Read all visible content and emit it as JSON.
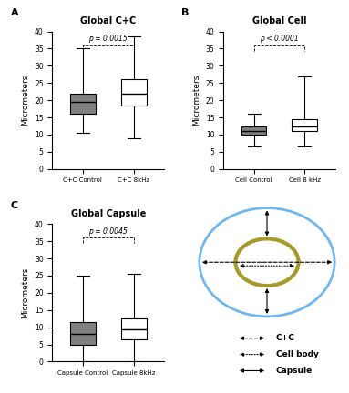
{
  "chart_data": [
    {
      "type": "box",
      "panel": "A",
      "title": "Global C+C",
      "y_label": "Micrometers",
      "categories": [
        "C+C Control",
        "C+C 8kHz"
      ],
      "boxes": [
        {
          "min": 10.5,
          "q1": 16,
          "median": 19.5,
          "q3": 22,
          "max": 35
        },
        {
          "min": 9,
          "q1": 18.5,
          "median": 22,
          "q3": 26,
          "max": 38.5
        }
      ],
      "colors": [
        "#808080",
        "#ffffff"
      ],
      "annotation": "p = 0.0015",
      "ylim": [
        0,
        40
      ],
      "yticks": [
        0,
        5,
        10,
        15,
        20,
        25,
        30,
        35,
        40
      ]
    },
    {
      "type": "box",
      "panel": "B",
      "title": "Global Cell",
      "y_label": "Micrometers",
      "categories": [
        "Cell Control",
        "Cell 8 kHz"
      ],
      "boxes": [
        {
          "min": 6.5,
          "q1": 10,
          "median": 11,
          "q3": 12.5,
          "max": 16
        },
        {
          "min": 6.5,
          "q1": 11,
          "median": 12.5,
          "q3": 14.5,
          "max": 27
        }
      ],
      "colors": [
        "#808080",
        "#ffffff"
      ],
      "annotation": "p < 0.0001",
      "ylim": [
        0,
        40
      ],
      "yticks": [
        0,
        5,
        10,
        15,
        20,
        25,
        30,
        35,
        40
      ]
    },
    {
      "type": "box",
      "panel": "C",
      "title": "Global Capsule",
      "y_label": "Micrometers",
      "categories": [
        "Capsule Control",
        "Capsule 8kHz"
      ],
      "boxes": [
        {
          "min": 0,
          "q1": 5,
          "median": 8,
          "q3": 11.5,
          "max": 25
        },
        {
          "min": 0.2,
          "q1": 6.5,
          "median": 9.5,
          "q3": 12.5,
          "max": 25.5
        }
      ],
      "colors": [
        "#808080",
        "#ffffff"
      ],
      "annotation": "p = 0.0045",
      "ylim": [
        0,
        40
      ],
      "yticks": [
        0,
        5,
        10,
        15,
        20,
        25,
        30,
        35,
        40
      ]
    }
  ],
  "diagram": {
    "legend_items": [
      "C+C",
      "Cell body",
      "Capsule"
    ]
  }
}
